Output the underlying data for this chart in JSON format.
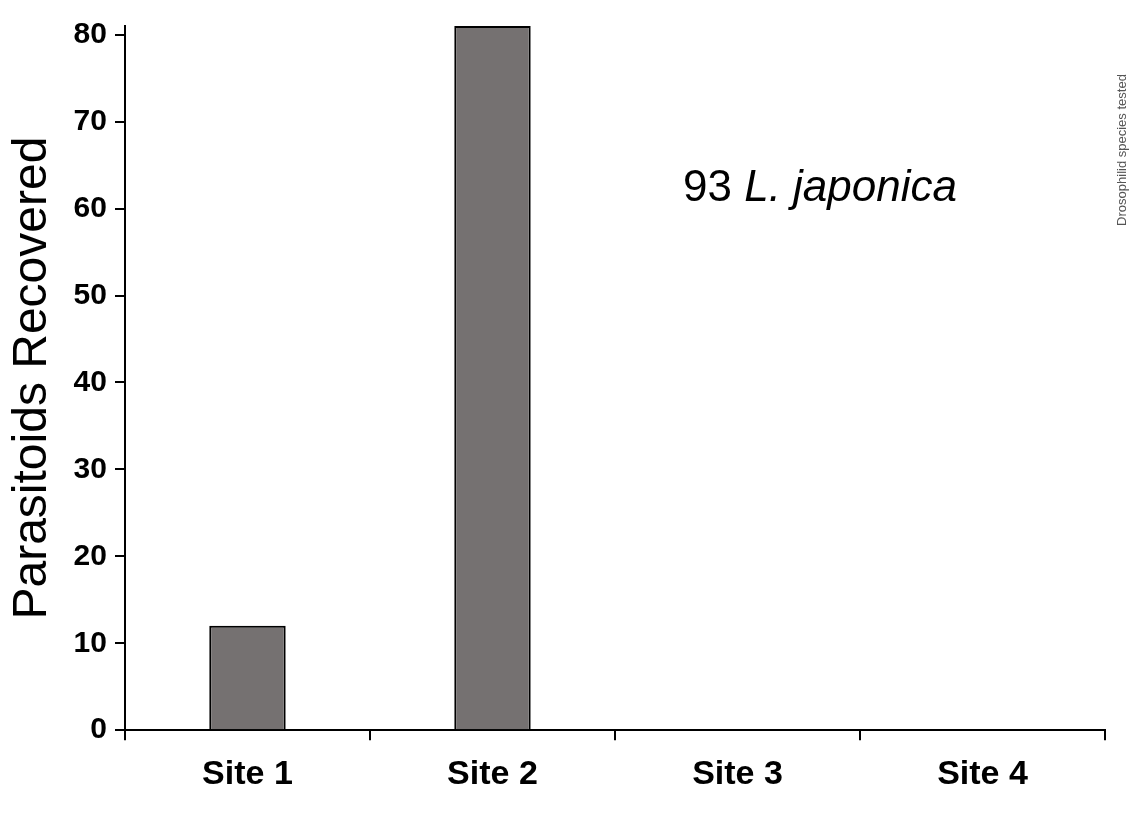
{
  "chart_data": {
    "type": "bar",
    "ylabel": "Parasitoids Recovered",
    "categories": [
      "Site 1",
      "Site 2",
      "Site 3",
      "Site 4"
    ],
    "values": [
      12,
      81,
      0,
      0
    ],
    "color": "#757171",
    "ylim": [
      0,
      81
    ],
    "yticks": [
      0,
      10,
      20,
      30,
      40,
      50,
      60,
      70,
      80
    ],
    "grid": false,
    "legend": false,
    "annotations": [
      "93 L. japonica",
      "Drosophilid species tested"
    ]
  }
}
